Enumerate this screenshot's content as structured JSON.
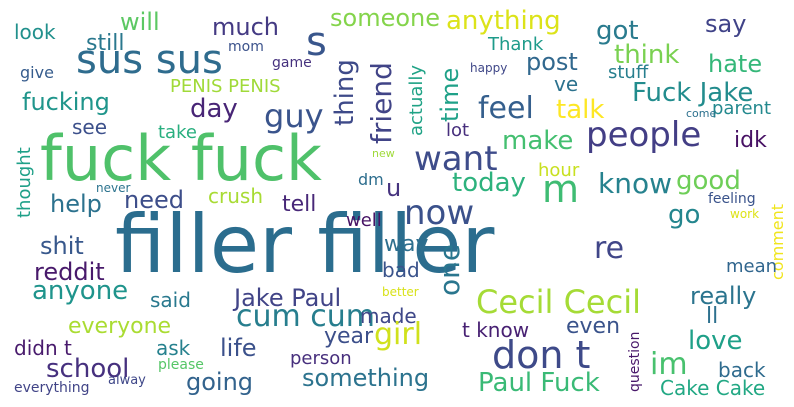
{
  "words": [
    {
      "t": "filler filler",
      "c": "#2b6d8e"
    },
    {
      "t": "fuck fuck",
      "c": "#4fc16a"
    },
    {
      "t": "sus sus",
      "c": "#2f6c8e"
    },
    {
      "t": "s",
      "c": "#39568c"
    },
    {
      "t": "someone",
      "c": "#84d44b"
    },
    {
      "t": "anything",
      "c": "#dce319"
    },
    {
      "t": "say",
      "c": "#404388"
    },
    {
      "t": "will",
      "c": "#5cc863"
    },
    {
      "t": "much",
      "c": "#443a83"
    },
    {
      "t": "look",
      "c": "#21908c"
    },
    {
      "t": "still",
      "c": "#2a788e"
    },
    {
      "t": "mom",
      "c": "#3b528b"
    },
    {
      "t": "game",
      "c": "#46327e"
    },
    {
      "t": "thing",
      "c": "#3e4a89"
    },
    {
      "t": "friend",
      "c": "#414487"
    },
    {
      "t": "actually",
      "c": "#20a386"
    },
    {
      "t": "time",
      "c": "#1fa188"
    },
    {
      "t": "Thank",
      "c": "#1e9b8a"
    },
    {
      "t": "got",
      "c": "#2a7b8e"
    },
    {
      "t": "think",
      "c": "#7ad151"
    },
    {
      "t": "post",
      "c": "#31688e"
    },
    {
      "t": "hate",
      "c": "#35b779"
    },
    {
      "t": "ve",
      "c": "#2c728e"
    },
    {
      "t": "stuff",
      "c": "#277f8e"
    },
    {
      "t": "give",
      "c": "#365c8d"
    },
    {
      "t": "PENIS PENIS",
      "c": "#a0da39"
    },
    {
      "t": "happy",
      "c": "#3f4788"
    },
    {
      "t": "fucking",
      "c": "#1f958b"
    },
    {
      "t": "day",
      "c": "#482576"
    },
    {
      "t": "guy",
      "c": "#3a548c"
    },
    {
      "t": "feel",
      "c": "#355f8d"
    },
    {
      "t": "talk",
      "c": "#fde725"
    },
    {
      "t": "Fuck Jake",
      "c": "#228c8d"
    },
    {
      "t": "see",
      "c": "#3c508b"
    },
    {
      "t": "take",
      "c": "#29af7f"
    },
    {
      "t": "lot",
      "c": "#472f7d"
    },
    {
      "t": "make",
      "c": "#44bf70"
    },
    {
      "t": "people",
      "c": "#433e85"
    },
    {
      "t": "parent",
      "c": "#23898e"
    },
    {
      "t": "come",
      "c": "#2d718e"
    },
    {
      "t": "want",
      "c": "#3e4c8a"
    },
    {
      "t": "idk",
      "c": "#471164"
    },
    {
      "t": "thought",
      "c": "#1fa088"
    },
    {
      "t": "new",
      "c": "#9fda3a"
    },
    {
      "t": "m",
      "c": "#3fbc73"
    },
    {
      "t": "hour",
      "c": "#c8e020"
    },
    {
      "t": "dm",
      "c": "#2e6e8e"
    },
    {
      "t": "u",
      "c": "#46337f"
    },
    {
      "t": "today",
      "c": "#2db27d"
    },
    {
      "t": "know",
      "c": "#26828e"
    },
    {
      "t": "good",
      "c": "#6ece58"
    },
    {
      "t": "never",
      "c": "#2c738e"
    },
    {
      "t": "crush",
      "c": "#a8db34"
    },
    {
      "t": "help",
      "c": "#2c728e"
    },
    {
      "t": "need",
      "c": "#3d4e8a"
    },
    {
      "t": "tell",
      "c": "#482878"
    },
    {
      "t": "feeling",
      "c": "#3a538b"
    },
    {
      "t": "work",
      "c": "#dde318"
    },
    {
      "t": "now",
      "c": "#3b518b"
    },
    {
      "t": "go",
      "c": "#24868e"
    },
    {
      "t": "comment",
      "c": "#f0e51c"
    },
    {
      "t": "well",
      "c": "#471365"
    },
    {
      "t": "shit",
      "c": "#38588c"
    },
    {
      "t": "way",
      "c": "#2e6f8e"
    },
    {
      "t": "one",
      "c": "#2a768e"
    },
    {
      "t": "re",
      "c": "#404688"
    },
    {
      "t": "reddit",
      "c": "#48196b"
    },
    {
      "t": "mean",
      "c": "#31668e"
    },
    {
      "t": "bad",
      "c": "#3a538b"
    },
    {
      "t": "anyone",
      "c": "#1f948c"
    },
    {
      "t": "Jake Paul",
      "c": "#414487"
    },
    {
      "t": "Cecil Cecil",
      "c": "#a5db36"
    },
    {
      "t": "better",
      "c": "#d8e219"
    },
    {
      "t": "really",
      "c": "#2b748e"
    },
    {
      "t": "said",
      "c": "#29798e"
    },
    {
      "t": "cum cum",
      "c": "#277e8e"
    },
    {
      "t": "everyone",
      "c": "#aadc32"
    },
    {
      "t": "made",
      "c": "#3f4889"
    },
    {
      "t": "ll",
      "c": "#2d708e"
    },
    {
      "t": "year",
      "c": "#3c4f8a"
    },
    {
      "t": "girl",
      "c": "#d0e11c"
    },
    {
      "t": "t know",
      "c": "#482173"
    },
    {
      "t": "even",
      "c": "#3a538b"
    },
    {
      "t": "love",
      "c": "#1fa088"
    },
    {
      "t": "didn t",
      "c": "#481a6c"
    },
    {
      "t": "ask",
      "c": "#26818e"
    },
    {
      "t": "life",
      "c": "#3b518b"
    },
    {
      "t": "don t",
      "c": "#3e4a89"
    },
    {
      "t": "question",
      "c": "#48186a"
    },
    {
      "t": "school",
      "c": "#46307e"
    },
    {
      "t": "please",
      "c": "#56c667"
    },
    {
      "t": "person",
      "c": "#472f7d"
    },
    {
      "t": "im",
      "c": "#48c16e"
    },
    {
      "t": "back",
      "c": "#2f6b8e"
    },
    {
      "t": "alway",
      "c": "#3f4889"
    },
    {
      "t": "going",
      "c": "#33638d"
    },
    {
      "t": "something",
      "c": "#2c738e"
    },
    {
      "t": "Paul Fuck",
      "c": "#3aba76"
    },
    {
      "t": "Cake Cake",
      "c": "#22a884"
    },
    {
      "t": "everything",
      "c": "#414487"
    }
  ]
}
